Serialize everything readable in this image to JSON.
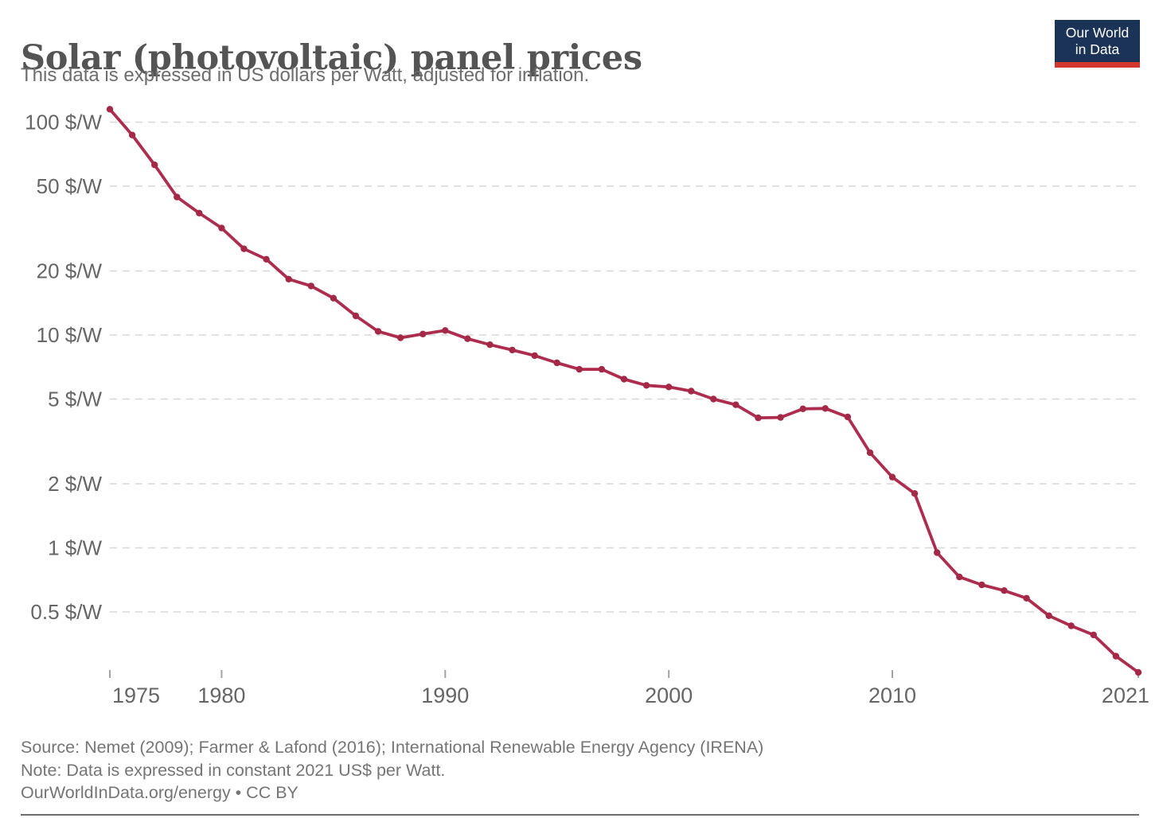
{
  "header": {
    "title": "Solar (photovoltaic) panel prices",
    "subtitle": "This data is expressed in US dollars per Watt, adjusted for inflation.",
    "logo": {
      "line1": "Our World",
      "line2": "in Data"
    }
  },
  "chart_data": {
    "type": "line",
    "title": "Solar (photovoltaic) panel prices",
    "subtitle": "This data is expressed in US dollars per Watt, adjusted for inflation.",
    "xlabel": "",
    "ylabel": "$ per Watt",
    "yscale": "log",
    "grid": "horizontal-dashed",
    "legend_position": "none",
    "ylim": [
      0.26,
      120
    ],
    "xlim": [
      1975,
      2021
    ],
    "years": [
      1975,
      1976,
      1977,
      1978,
      1979,
      1980,
      1981,
      1982,
      1983,
      1984,
      1985,
      1986,
      1987,
      1988,
      1989,
      1990,
      1991,
      1992,
      1993,
      1994,
      1995,
      1996,
      1997,
      1998,
      1999,
      2000,
      2001,
      2002,
      2003,
      2004,
      2005,
      2006,
      2007,
      2008,
      2009,
      2010,
      2011,
      2012,
      2013,
      2014,
      2015,
      2016,
      2017,
      2018,
      2019,
      2020,
      2021
    ],
    "values": [
      115,
      87,
      63,
      44.5,
      37.4,
      31.8,
      25.4,
      22.7,
      18.3,
      17.0,
      14.9,
      12.3,
      10.4,
      9.7,
      10.1,
      10.5,
      9.6,
      9.0,
      8.5,
      8.0,
      7.4,
      6.9,
      6.9,
      6.2,
      5.8,
      5.7,
      5.45,
      5.0,
      4.7,
      4.08,
      4.1,
      4.5,
      4.52,
      4.12,
      2.8,
      2.15,
      1.8,
      0.95,
      0.73,
      0.67,
      0.63,
      0.58,
      0.48,
      0.43,
      0.39,
      0.31,
      0.26
    ],
    "series_name": "Solar PV module price (constant 2021 US$ per Watt)",
    "yticks": [
      {
        "value": 100,
        "label": "100 $/W"
      },
      {
        "value": 50,
        "label": "50 $/W"
      },
      {
        "value": 20,
        "label": "20 $/W"
      },
      {
        "value": 10,
        "label": "10 $/W"
      },
      {
        "value": 5,
        "label": "5 $/W"
      },
      {
        "value": 2,
        "label": "2 $/W"
      },
      {
        "value": 1,
        "label": "1 $/W"
      },
      {
        "value": 0.5,
        "label": "0.5 $/W"
      }
    ],
    "xticks": [
      1975,
      1980,
      1990,
      2000,
      2010,
      2021
    ]
  },
  "footer": {
    "source": "Source: Nemet (2009); Farmer & Lafond (2016); International Renewable Energy Agency (IRENA)",
    "note": "Note: Data is expressed in constant 2021 US$ per Watt.",
    "url_line": "OurWorldInData.org/energy • CC BY"
  },
  "colors": {
    "line": "#ae2c4e",
    "marker": "#a32947",
    "grid": "#d8d8d8",
    "tick": "#a3a3a3",
    "axis_text": "#666666",
    "title_text": "#545454",
    "subtitle_text": "#6d6d6d",
    "footer_text": "#757575",
    "logo_bg": "#1b3356",
    "logo_bar": "#d1352b",
    "bottom_bar": "#6e6e6e"
  }
}
